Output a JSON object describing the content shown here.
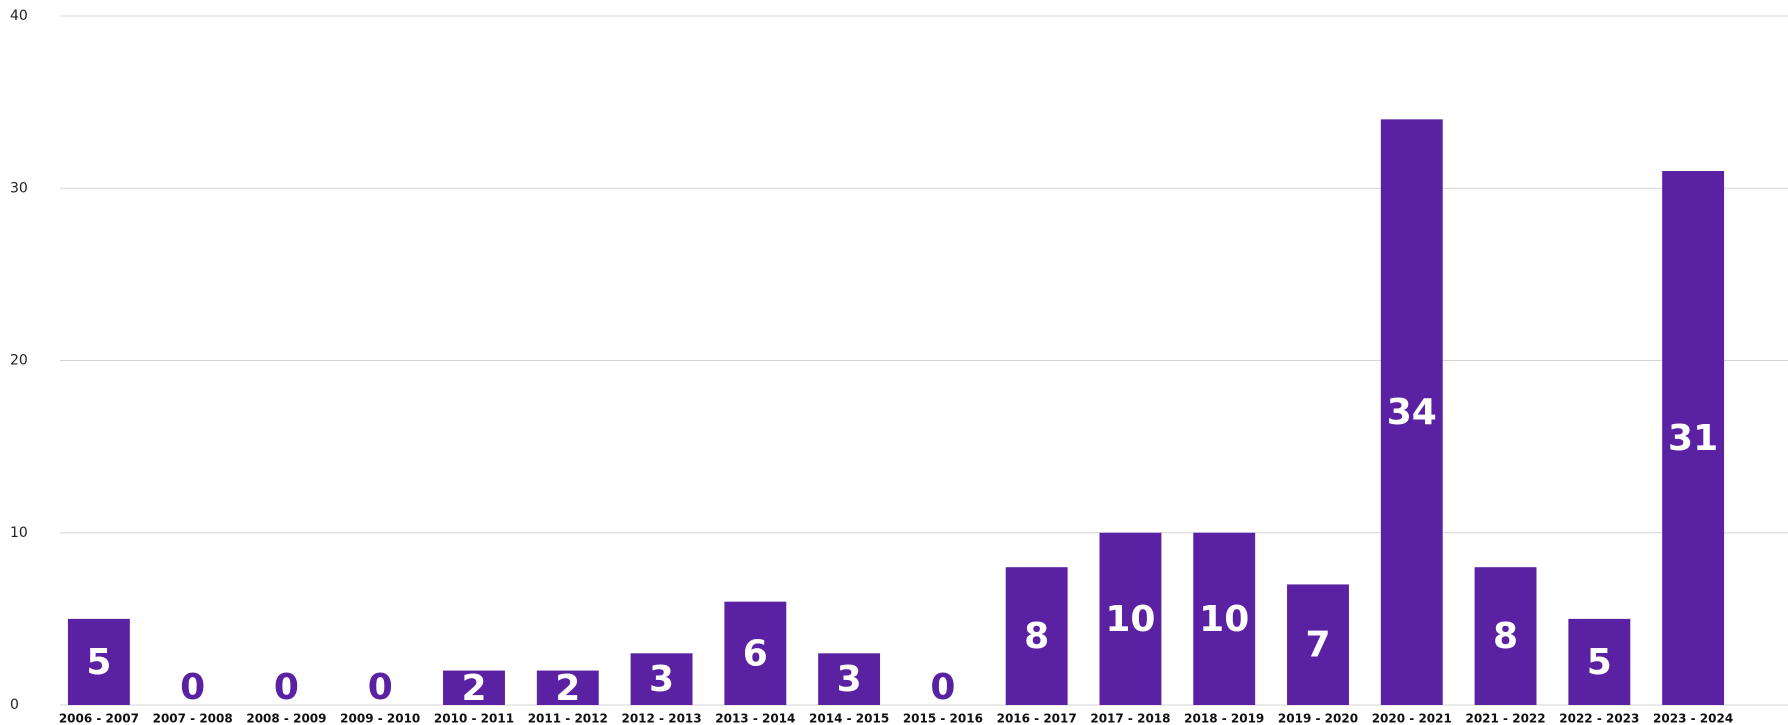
{
  "chart_data": {
    "type": "bar",
    "categories": [
      "2006 - 2007",
      "2007 - 2008",
      "2008 - 2009",
      "2009 - 2010",
      "2010 - 2011",
      "2011 - 2012",
      "2012 - 2013",
      "2013 - 2014",
      "2014 - 2015",
      "2015 - 2016",
      "2016 - 2017",
      "2017 - 2018",
      "2018 - 2019",
      "2019 - 2020",
      "2020 - 2021",
      "2021 - 2022",
      "2022 - 2023",
      "2023 - 2024"
    ],
    "values": [
      5,
      0,
      0,
      0,
      2,
      2,
      3,
      6,
      3,
      0,
      8,
      10,
      10,
      7,
      34,
      8,
      5,
      31
    ],
    "color": "#5b21a3",
    "ylim": [
      0,
      40
    ],
    "yticks": [
      0,
      10,
      20,
      30,
      40
    ],
    "grid": true
  }
}
